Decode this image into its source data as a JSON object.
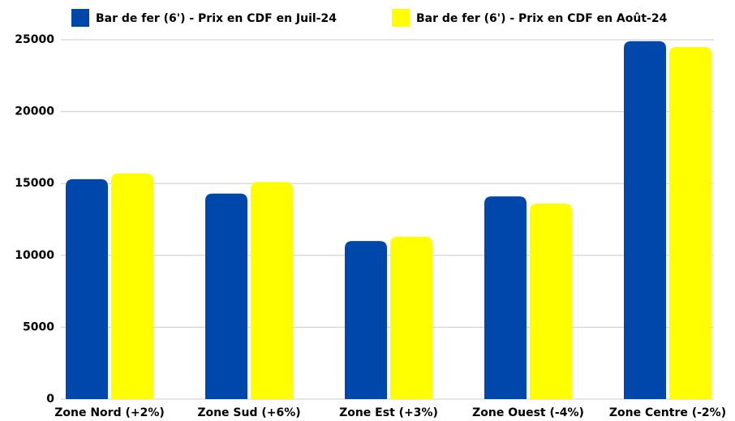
{
  "chart_data": {
    "type": "bar",
    "categories": [
      "Zone Nord (+2%)",
      "Zone Sud (+6%)",
      "Zone Est (+3%)",
      "Zone Ouest (-4%)",
      "Zone Centre (-2%)"
    ],
    "series": [
      {
        "name": "Bar de fer (6') - Prix en CDF en Juil-24",
        "color": "#0047ab",
        "values": [
          15300,
          14300,
          11000,
          14100,
          24900
        ]
      },
      {
        "name": "Bar de fer (6') - Prix en CDF en Août-24",
        "color": "#ffff00",
        "values": [
          15700,
          15100,
          11300,
          13600,
          24500
        ]
      }
    ],
    "ylim": [
      0,
      25000
    ],
    "yticks": [
      0,
      5000,
      10000,
      15000,
      20000,
      25000
    ],
    "grid": true,
    "legend": "top"
  }
}
